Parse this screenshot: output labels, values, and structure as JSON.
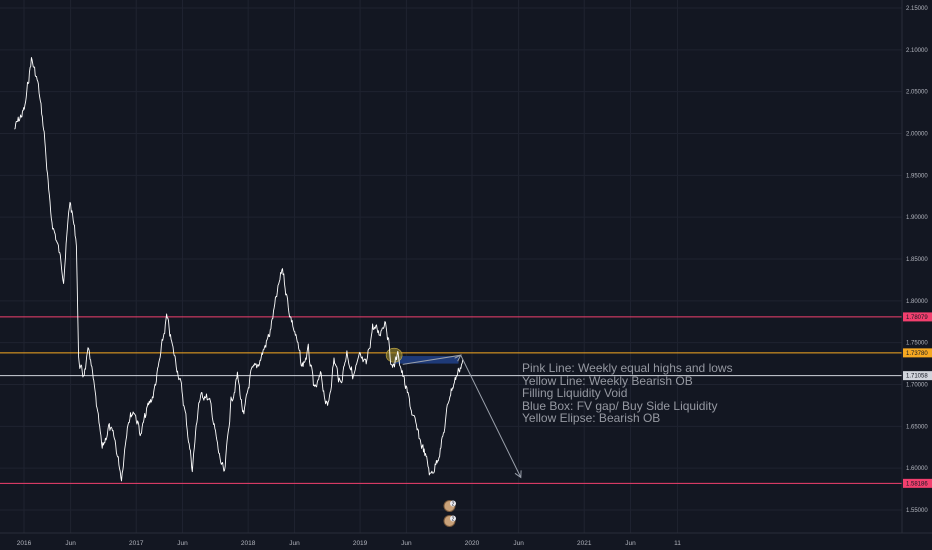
{
  "chart_data": {
    "type": "line",
    "title": "",
    "xlabel": "",
    "ylabel": "",
    "x_tick_labels": [
      "2016",
      "Jun",
      "2017",
      "Jun",
      "2018",
      "Jun",
      "2019",
      "Jun",
      "2020",
      "Jun",
      "2021",
      "Jun",
      "11"
    ],
    "y_tick_labels": [
      "2.15000",
      "2.10000",
      "2.05000",
      "2.00000",
      "1.95000",
      "1.90000",
      "1.85000",
      "1.80000",
      "1.75000",
      "1.70000",
      "1.65000",
      "1.60000",
      "1.55000"
    ],
    "ylim": [
      1.525,
      2.155
    ],
    "grid": true,
    "series": [
      {
        "color": "#ffffff",
        "x": [
          "2015-12-01",
          "2016-01-04",
          "2016-01-25",
          "2016-02-15",
          "2016-03-07",
          "2016-03-28",
          "2016-04-18",
          "2016-05-09",
          "2016-05-30",
          "2016-06-20",
          "2016-06-27",
          "2016-07-11",
          "2016-08-01",
          "2016-08-22",
          "2016-09-12",
          "2016-10-03",
          "2016-10-24",
          "2016-11-14",
          "2016-12-05",
          "2016-12-26",
          "2017-01-16",
          "2017-02-06",
          "2017-02-27",
          "2017-03-20",
          "2017-04-10",
          "2017-05-01",
          "2017-05-22",
          "2017-06-12",
          "2017-07-03",
          "2017-07-24",
          "2017-08-14",
          "2017-09-04",
          "2017-09-25",
          "2017-10-16",
          "2017-11-06",
          "2017-11-27",
          "2017-12-18",
          "2018-01-08",
          "2018-01-29",
          "2018-02-19",
          "2018-03-12",
          "2018-04-02",
          "2018-04-23",
          "2018-05-14",
          "2018-06-04",
          "2018-06-25",
          "2018-07-16",
          "2018-08-06",
          "2018-08-27",
          "2018-09-17",
          "2018-10-08",
          "2018-10-29",
          "2018-11-19",
          "2018-12-10",
          "2018-12-31",
          "2019-01-21",
          "2019-02-11",
          "2019-03-04",
          "2019-03-25",
          "2019-04-15",
          "2019-05-06",
          "2019-05-27",
          "2019-06-17",
          "2019-07-08",
          "2019-07-29",
          "2019-08-19",
          "2019-09-09",
          "2019-09-30",
          "2019-10-21",
          "2019-11-11",
          "2019-12-02"
        ],
        "values": [
          2.005,
          2.03,
          2.09,
          2.06,
          2.0,
          1.9,
          1.87,
          1.83,
          1.92,
          1.87,
          1.73,
          1.71,
          1.74,
          1.68,
          1.62,
          1.65,
          1.63,
          1.59,
          1.66,
          1.67,
          1.64,
          1.67,
          1.69,
          1.73,
          1.78,
          1.74,
          1.71,
          1.66,
          1.6,
          1.68,
          1.69,
          1.67,
          1.62,
          1.59,
          1.68,
          1.71,
          1.66,
          1.71,
          1.72,
          1.74,
          1.76,
          1.8,
          1.84,
          1.79,
          1.76,
          1.72,
          1.74,
          1.69,
          1.71,
          1.67,
          1.73,
          1.7,
          1.74,
          1.71,
          1.73,
          1.72,
          1.77,
          1.76,
          1.78,
          1.72,
          1.735,
          1.7,
          1.67,
          1.64,
          1.62,
          1.59,
          1.61,
          1.64,
          1.69,
          1.71,
          1.73
        ]
      }
    ],
    "horizontal_levels": [
      {
        "value": 1.78079,
        "label": "1.78079",
        "color": "#f23f6e"
      },
      {
        "value": 1.7378,
        "label": "1.73780",
        "color": "#f6a821"
      },
      {
        "value": 1.71058,
        "label": "1.71058",
        "color": "#d1d4dc"
      },
      {
        "value": 1.58186,
        "label": "1.58186",
        "color": "#f23f6e"
      }
    ],
    "blue_box": {
      "x0": "2019-04-22",
      "x1": "2019-11-18",
      "y0": 1.734,
      "y1": 1.725,
      "color": "#1e3a78"
    },
    "yellow_ellipse": {
      "x": "2019-04-22",
      "y": 1.735,
      "color": "#8a7a2a"
    },
    "projection_arrow": [
      {
        "x": "2019-05-20",
        "y": 1.724
      },
      {
        "x": "2019-11-25",
        "y": 1.735
      },
      {
        "x": "2020-06-08",
        "y": 1.589
      }
    ],
    "event_markers": {
      "x": "2019-12-01",
      "label": "2"
    }
  },
  "annotation": {
    "lines": [
      "Pink Line: Weekly equal highs and lows",
      "Yellow Line: Weekly Bearish OB",
      "Filling Liquidity Void",
      "Blue Box: FV gap/ Buy Side Liquidity",
      "Yellow Elipse: Bearish OB"
    ]
  }
}
